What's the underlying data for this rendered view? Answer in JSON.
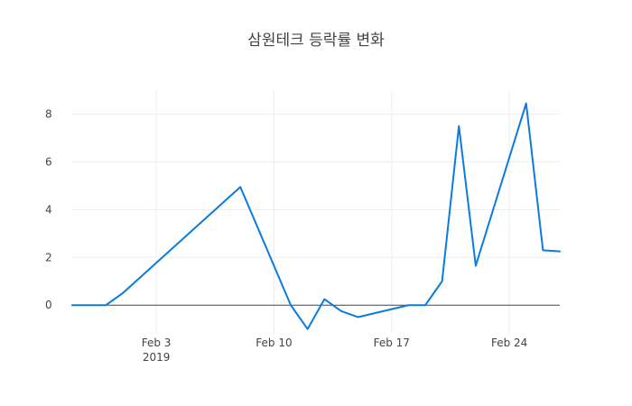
{
  "chart_data": {
    "type": "line",
    "title": "삼원테크 등락률 변화",
    "xlabel": "",
    "ylabel": "",
    "x_ticks": [
      {
        "date": "2019-02-03",
        "label": "Feb 3",
        "sublabel": "2019"
      },
      {
        "date": "2019-02-10",
        "label": "Feb 10",
        "sublabel": ""
      },
      {
        "date": "2019-02-17",
        "label": "Feb 17",
        "sublabel": ""
      },
      {
        "date": "2019-02-24",
        "label": "Feb 24",
        "sublabel": ""
      }
    ],
    "y_ticks": [
      0,
      2,
      4,
      6,
      8
    ],
    "xlim": [
      "2019-01-29",
      "2019-02-27"
    ],
    "ylim": [
      -1.2,
      9
    ],
    "grid": true,
    "series": [
      {
        "color": "#0a7be0",
        "x": [
          "2019-01-29",
          "2019-01-31",
          "2019-02-01",
          "2019-02-08",
          "2019-02-11",
          "2019-02-12",
          "2019-02-13",
          "2019-02-14",
          "2019-02-15",
          "2019-02-18",
          "2019-02-19",
          "2019-02-20",
          "2019-02-21",
          "2019-02-22",
          "2019-02-25",
          "2019-02-26",
          "2019-02-27"
        ],
        "y": [
          0,
          0,
          0.5,
          4.95,
          0,
          -1.0,
          0.25,
          -0.25,
          -0.5,
          0,
          0,
          1.0,
          7.5,
          1.65,
          8.45,
          2.3,
          2.25
        ]
      }
    ]
  }
}
